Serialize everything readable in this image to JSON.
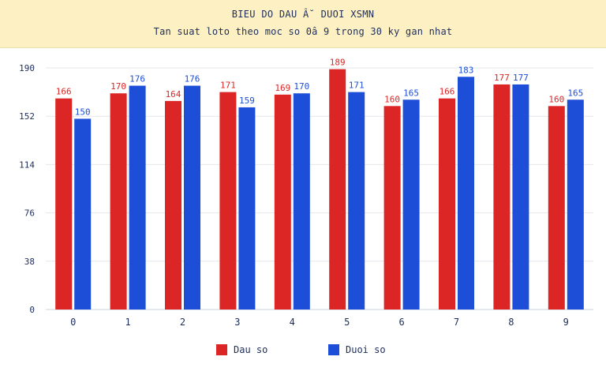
{
  "header": {
    "title": "BIEU DO DAU Â˘ DUOI XSMN",
    "subtitle": "Tan suat loto theo moc so 0â  9 trong 30 ky gan nhat"
  },
  "colors": {
    "dau": "#dc2626",
    "duoi": "#1d4ed8",
    "grid": "#e5e7eb",
    "axis_text": "#1f2d5a",
    "header_bg": "#fdf1c4"
  },
  "legend": [
    {
      "label": "Dau so",
      "color": "#dc2626"
    },
    {
      "label": "Duoi so",
      "color": "#1d4ed8"
    }
  ],
  "chart_data": {
    "type": "bar",
    "categories": [
      "0",
      "1",
      "2",
      "3",
      "4",
      "5",
      "6",
      "7",
      "8",
      "9"
    ],
    "series": [
      {
        "name": "Dau so",
        "values": [
          166,
          170,
          164,
          171,
          169,
          189,
          160,
          166,
          177,
          160
        ]
      },
      {
        "name": "Duoi so",
        "values": [
          150,
          176,
          176,
          159,
          170,
          171,
          165,
          183,
          177,
          165
        ]
      }
    ],
    "yticks": [
      0,
      38,
      76,
      114,
      152,
      190
    ],
    "ylim": [
      0,
      190
    ],
    "grid": true,
    "legend_position": "bottom"
  }
}
